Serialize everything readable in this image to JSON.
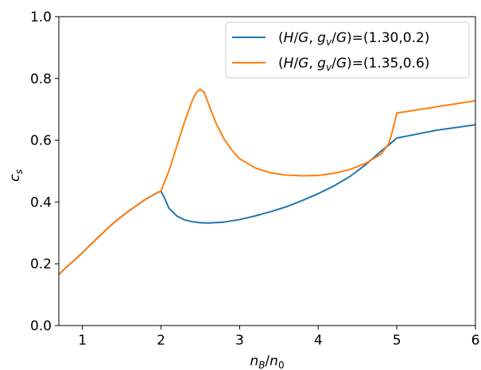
{
  "chart_data": {
    "type": "line",
    "title": "",
    "xlabel": "n_B/n_0",
    "ylabel": "c_s",
    "xlim": [
      0.7,
      6.0
    ],
    "ylim": [
      0.0,
      1.0
    ],
    "xticks": [
      1,
      2,
      3,
      4,
      5,
      6
    ],
    "yticks": [
      0.0,
      0.2,
      0.4,
      0.6,
      0.8,
      1.0
    ],
    "xtick_labels": [
      "1",
      "2",
      "3",
      "4",
      "5",
      "6"
    ],
    "ytick_labels": [
      "0.0",
      "0.2",
      "0.4",
      "0.6",
      "0.8",
      "1.0"
    ],
    "grid": false,
    "legend_position": "top-right",
    "series": [
      {
        "name": "(H/G, g_v/G)=(1.30,0.2)",
        "color": "#1f77b4",
        "x": [
          0.7,
          0.8,
          0.9,
          1.0,
          1.2,
          1.4,
          1.6,
          1.8,
          1.95,
          2.0,
          2.05,
          2.1,
          2.2,
          2.3,
          2.4,
          2.5,
          2.6,
          2.8,
          3.0,
          3.2,
          3.4,
          3.6,
          3.8,
          4.0,
          4.2,
          4.4,
          4.6,
          4.8,
          4.9,
          5.0,
          5.5,
          6.0
        ],
        "y": [
          0.165,
          0.19,
          0.212,
          0.236,
          0.286,
          0.333,
          0.373,
          0.408,
          0.43,
          0.435,
          0.41,
          0.38,
          0.355,
          0.342,
          0.336,
          0.333,
          0.332,
          0.335,
          0.343,
          0.355,
          0.369,
          0.385,
          0.405,
          0.427,
          0.452,
          0.482,
          0.52,
          0.565,
          0.585,
          0.607,
          0.632,
          0.65
        ]
      },
      {
        "name": "(H/G, g_v/G)=(1.35,0.6)",
        "color": "#ff7f0e",
        "x": [
          0.7,
          0.8,
          0.9,
          1.0,
          1.2,
          1.4,
          1.6,
          1.8,
          1.95,
          2.0,
          2.1,
          2.2,
          2.3,
          2.4,
          2.45,
          2.5,
          2.55,
          2.6,
          2.7,
          2.8,
          2.9,
          3.0,
          3.2,
          3.4,
          3.6,
          3.8,
          4.0,
          4.2,
          4.4,
          4.6,
          4.8,
          4.9,
          4.95,
          5.0,
          5.5,
          6.0
        ],
        "y": [
          0.165,
          0.19,
          0.212,
          0.236,
          0.286,
          0.333,
          0.373,
          0.408,
          0.43,
          0.436,
          0.5,
          0.58,
          0.66,
          0.73,
          0.755,
          0.765,
          0.755,
          0.72,
          0.655,
          0.605,
          0.568,
          0.54,
          0.51,
          0.494,
          0.487,
          0.485,
          0.486,
          0.493,
          0.505,
          0.525,
          0.555,
          0.59,
          0.635,
          0.688,
          0.708,
          0.728
        ]
      }
    ]
  }
}
